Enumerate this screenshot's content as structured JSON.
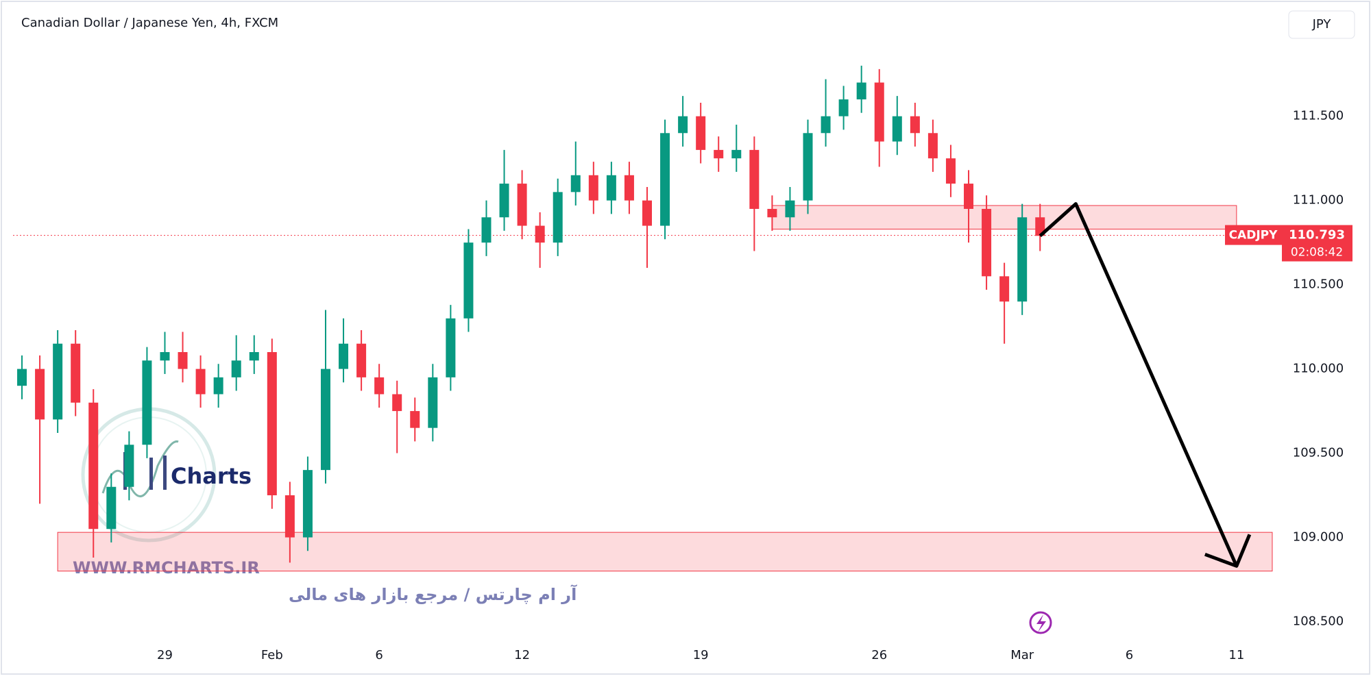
{
  "chart_data": {
    "type": "candlestick",
    "title": "Canadian Dollar / Japanese Yen, 4h, FXCM",
    "currency": "JPY",
    "categories": [
      null,
      null,
      null,
      null,
      null,
      null,
      null,
      null,
      "29",
      null,
      null,
      null,
      null,
      null,
      "Feb",
      null,
      null,
      null,
      null,
      null,
      "6",
      null,
      null,
      null,
      null,
      null,
      null,
      null,
      "12",
      null,
      null,
      null,
      null,
      null,
      null,
      null,
      null,
      null,
      "19",
      null,
      null,
      null,
      null,
      null,
      null,
      null,
      null,
      null,
      "26",
      null,
      null,
      null,
      null,
      null,
      null,
      null,
      "Mar",
      null,
      null,
      null,
      null,
      null,
      "6",
      null,
      null,
      null,
      null,
      null,
      "11",
      null,
      null
    ],
    "open": [
      109.9,
      110.0,
      109.7,
      110.15,
      109.8,
      109.05,
      109.3,
      109.55,
      110.05,
      110.1,
      110.0,
      109.85,
      109.95,
      110.05,
      110.1,
      109.25,
      109.0,
      109.4,
      110.0,
      110.15,
      109.95,
      109.85,
      109.75,
      109.65,
      109.95,
      110.3,
      110.75,
      110.9,
      111.1,
      110.85,
      110.75,
      111.05,
      111.15,
      111.0,
      111.15,
      111.0,
      110.85,
      111.4,
      111.5,
      111.3,
      111.25,
      111.3,
      110.95,
      110.9,
      111.0,
      111.4,
      111.5,
      111.6,
      111.7,
      111.35,
      111.5,
      111.4,
      111.25,
      111.1,
      110.95,
      110.55,
      110.4,
      110.9,
      null,
      null,
      null,
      null,
      null,
      null,
      null,
      null,
      null,
      null,
      null,
      null,
      null
    ],
    "high": [
      110.08,
      110.08,
      110.23,
      110.23,
      109.88,
      109.38,
      109.63,
      110.13,
      110.22,
      110.22,
      110.08,
      110.03,
      110.2,
      110.2,
      110.18,
      109.33,
      109.48,
      110.35,
      110.3,
      110.23,
      110.03,
      109.93,
      109.83,
      110.03,
      110.38,
      110.83,
      111.0,
      111.3,
      111.18,
      110.93,
      111.13,
      111.35,
      111.23,
      111.23,
      111.23,
      111.08,
      111.48,
      111.62,
      111.58,
      111.38,
      111.45,
      111.38,
      111.03,
      111.08,
      111.48,
      111.72,
      111.68,
      111.8,
      111.78,
      111.62,
      111.58,
      111.48,
      111.33,
      111.18,
      111.03,
      110.63,
      110.98,
      110.98,
      null,
      null,
      null,
      null,
      null,
      null,
      null,
      null,
      null,
      null,
      null,
      null,
      null
    ],
    "low": [
      109.82,
      109.2,
      109.62,
      109.72,
      108.88,
      108.97,
      109.22,
      109.47,
      109.97,
      109.92,
      109.77,
      109.77,
      109.87,
      109.97,
      109.17,
      108.85,
      108.92,
      109.32,
      109.92,
      109.87,
      109.77,
      109.5,
      109.57,
      109.57,
      109.87,
      110.22,
      110.67,
      110.82,
      110.77,
      110.6,
      110.67,
      110.97,
      110.92,
      110.92,
      110.92,
      110.6,
      110.77,
      111.32,
      111.22,
      111.17,
      111.17,
      110.7,
      110.82,
      110.82,
      110.92,
      111.32,
      111.42,
      111.52,
      111.2,
      111.27,
      111.32,
      111.17,
      111.02,
      110.75,
      110.47,
      110.15,
      110.32,
      110.7,
      null,
      null,
      null,
      null,
      null,
      null,
      null,
      null,
      null,
      null,
      null,
      null,
      null
    ],
    "close": [
      110.0,
      109.7,
      110.15,
      109.8,
      109.05,
      109.3,
      109.55,
      110.05,
      110.1,
      110.0,
      109.85,
      109.95,
      110.05,
      110.1,
      109.25,
      109.0,
      109.4,
      110.0,
      110.15,
      109.95,
      109.85,
      109.75,
      109.65,
      109.95,
      110.3,
      110.75,
      110.9,
      111.1,
      110.85,
      110.75,
      111.05,
      111.15,
      111.0,
      111.15,
      111.0,
      110.85,
      111.4,
      111.5,
      111.3,
      111.25,
      111.3,
      110.95,
      110.9,
      111.0,
      111.4,
      111.5,
      111.6,
      111.7,
      111.35,
      111.5,
      111.4,
      111.25,
      111.1,
      110.95,
      110.55,
      110.4,
      110.9,
      110.79,
      null,
      null,
      null,
      null,
      null,
      null,
      null,
      null,
      null,
      null,
      null,
      null,
      null
    ],
    "up_color": "#089981",
    "down_color": "#f23645",
    "ylim": [
      108.38,
      112.19
    ],
    "yticks": [
      {
        "value": 108.5,
        "label": "108.500"
      },
      {
        "value": 109,
        "label": "109.000"
      },
      {
        "value": 109.5,
        "label": "109.500"
      },
      {
        "value": 110,
        "label": "110.000"
      },
      {
        "value": 110.5,
        "label": "110.500"
      },
      {
        "value": 111,
        "label": "111.000"
      },
      {
        "value": 111.5,
        "label": "111.500"
      }
    ],
    "last_price": {
      "symbol": "CADJPY",
      "value": 110.793,
      "countdown": "02:08:42"
    },
    "zones": [
      {
        "x_range": [
          42,
          68
        ],
        "range": [
          110.83,
          110.97
        ]
      },
      {
        "x_range": [
          2,
          70
        ],
        "range": [
          108.8,
          109.03
        ]
      }
    ],
    "arrow": {
      "x": [
        57,
        59,
        68
      ],
      "values": [
        110.79,
        110.98,
        108.83
      ]
    },
    "watermark": {
      "brand": "Charts",
      "url": "WWW.RMCHARTS.IR",
      "tagline": "آر ام چارتس / مرجع بازار های مالی"
    }
  }
}
